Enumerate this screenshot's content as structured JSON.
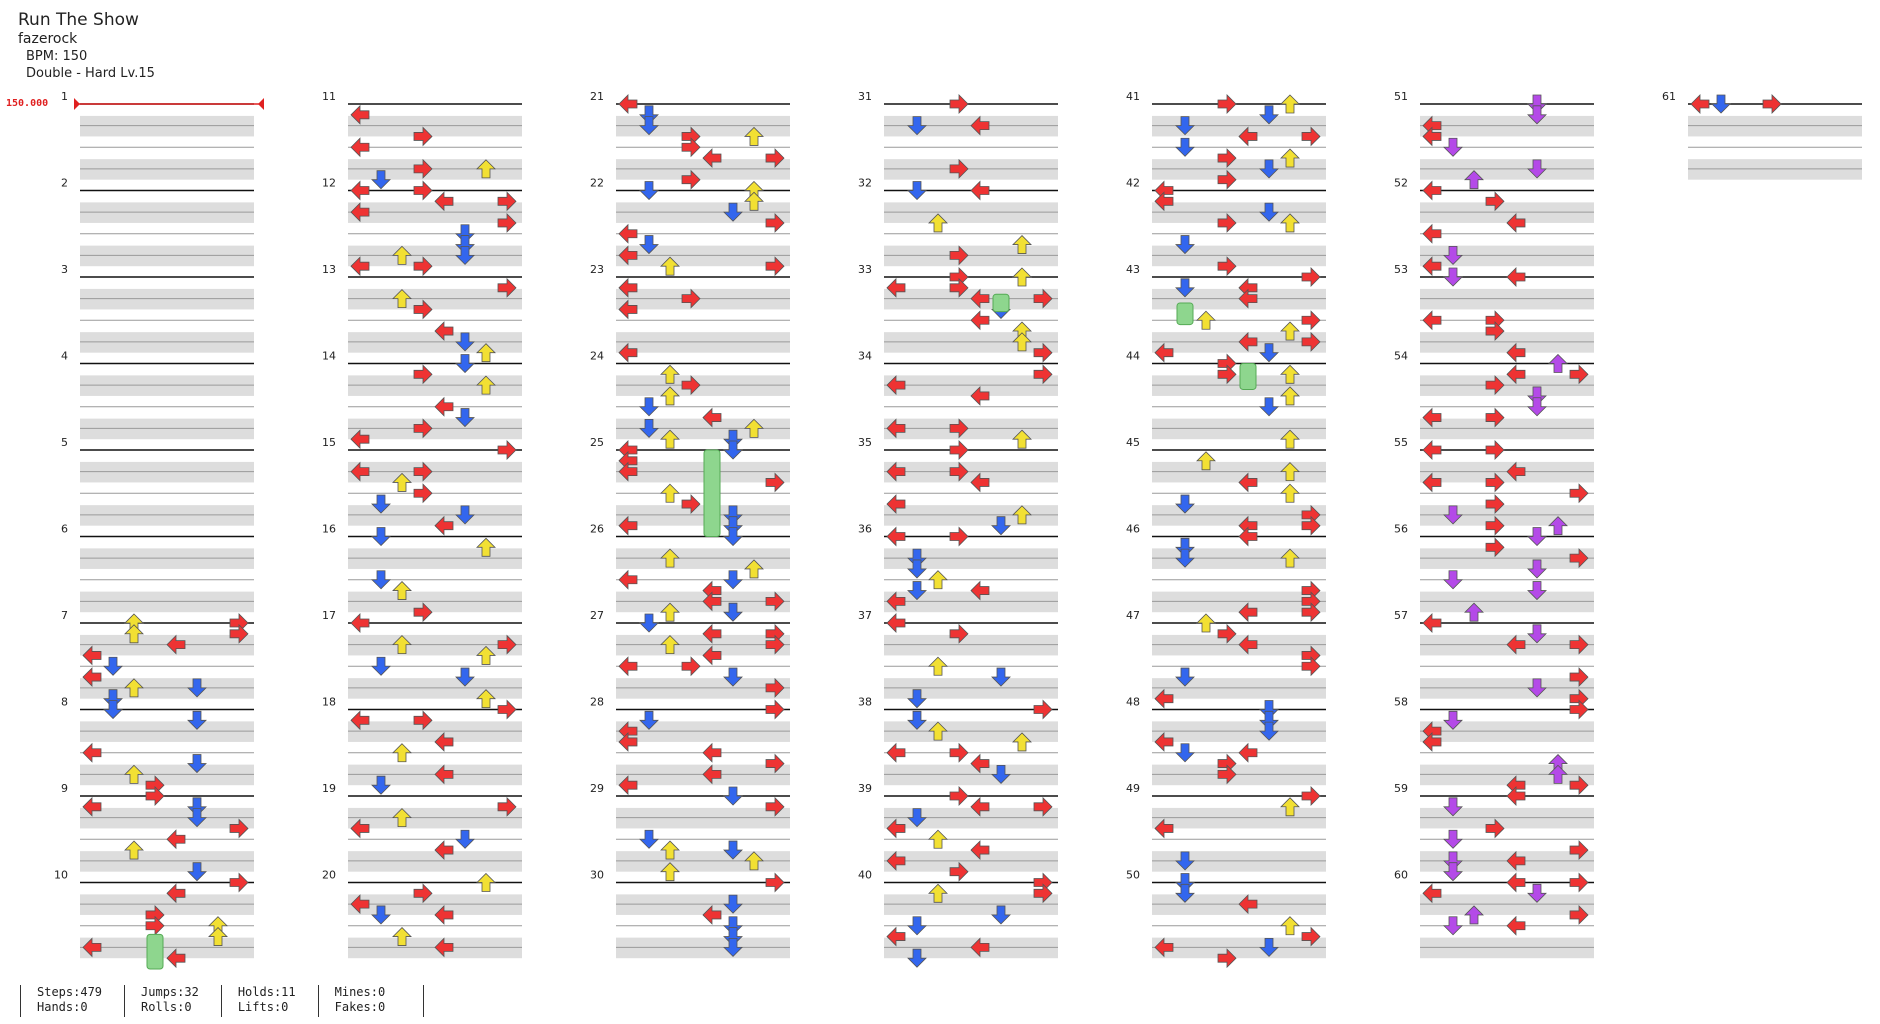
{
  "song": {
    "title": "Run The Show",
    "artist": "fazerock",
    "bpm_text": "BPM: 150",
    "difficulty_text": "Double - Hard  Lv.15"
  },
  "bpm_marker": "150.000",
  "measure_count": 61,
  "columns_of_measures": 7,
  "measures_per_column": 10,
  "colors": {
    "arrow_red": "#ee3333",
    "arrow_blue": "#3366ee",
    "arrow_yellow": "#f2e033",
    "arrow_purple": "#b44ae8",
    "hold_green": "#8ed68e",
    "lane_band": "#dddddd",
    "bpm_line": "#e02020"
  },
  "arrow_icons": [
    "left-arrow-icon",
    "down-arrow-icon",
    "up-arrow-icon",
    "right-arrow-icon"
  ],
  "stats": [
    {
      "line1": "Steps:479",
      "line2": "Hands:0"
    },
    {
      "line1": "Jumps:32",
      "line2": "Rolls:0"
    },
    {
      "line1": "Holds:11",
      "line2": "Lifts:0"
    },
    {
      "line1": "Mines:0",
      "line2": "Fakes:0"
    }
  ]
}
